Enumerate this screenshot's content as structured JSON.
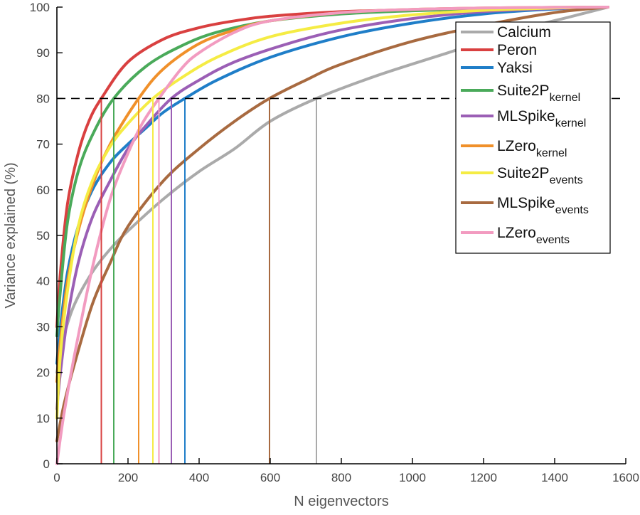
{
  "chart_data": {
    "type": "line",
    "xlabel": "N eigenvectors",
    "ylabel": "Variance explained (%)",
    "xlim": [
      0,
      1600
    ],
    "ylim": [
      0,
      100
    ],
    "xticks": [
      "0",
      "200",
      "400",
      "600",
      "800",
      "1000",
      "1200",
      "1400",
      "1600"
    ],
    "yticks": [
      "0",
      "10",
      "20",
      "30",
      "40",
      "50",
      "60",
      "70",
      "80",
      "90",
      "100"
    ],
    "grid": false,
    "legend_position": "top-right",
    "reference_line": {
      "y": 80,
      "x_from": 0,
      "x_to": 1600,
      "style": "dashed"
    },
    "series": [
      {
        "name": "Calcium",
        "sub": "",
        "color": "#aaaaaa",
        "n80": 730,
        "x": [
          0,
          20,
          50,
          100,
          150,
          200,
          300,
          400,
          500,
          600,
          730,
          900,
          1100,
          1300,
          1450,
          1550
        ],
        "y": [
          20,
          28,
          35,
          42,
          47,
          51,
          58,
          64,
          69,
          75,
          80,
          85,
          90,
          95,
          98,
          100
        ]
      },
      {
        "name": "Peron",
        "sub": "",
        "color": "#d94040",
        "n80": 125,
        "x": [
          0,
          10,
          30,
          60,
          90,
          125,
          200,
          300,
          400,
          500,
          600,
          800,
          1000,
          1200,
          1400,
          1550
        ],
        "y": [
          30,
          42,
          57,
          68,
          75,
          80,
          88,
          93,
          95.5,
          97,
          98,
          99,
          99.4,
          99.7,
          99.9,
          100
        ]
      },
      {
        "name": "Yaksi",
        "sub": "",
        "color": "#1f7ec8",
        "n80": 360,
        "x": [
          0,
          10,
          30,
          60,
          100,
          150,
          200,
          250,
          300,
          360,
          450,
          600,
          800,
          1000,
          1200,
          1400,
          1550
        ],
        "y": [
          22,
          30,
          42,
          52,
          60,
          66,
          70,
          73.5,
          77,
          80,
          84,
          89,
          93.5,
          96.5,
          98.5,
          99.6,
          100
        ]
      },
      {
        "name": "Suite2P",
        "sub": "kernel",
        "color": "#4aaa5a",
        "n80": 160,
        "x": [
          0,
          10,
          30,
          60,
          100,
          160,
          250,
          350,
          450,
          600,
          800,
          1000,
          1200,
          1400,
          1550
        ],
        "y": [
          28,
          38,
          53,
          64,
          72,
          80,
          87,
          91.5,
          94.5,
          97,
          98.5,
          99.2,
          99.6,
          99.9,
          100
        ]
      },
      {
        "name": "MLSpike",
        "sub": "kernel",
        "color": "#9b5fb5",
        "n80": 322,
        "x": [
          0,
          10,
          30,
          60,
          100,
          150,
          200,
          250,
          322,
          400,
          500,
          650,
          800,
          1000,
          1200,
          1400,
          1550
        ],
        "y": [
          12,
          20,
          32,
          44,
          54,
          62,
          69,
          74,
          80,
          84,
          88,
          92,
          95,
          97.5,
          99,
          99.7,
          100
        ]
      },
      {
        "name": "LZero",
        "sub": "kernel",
        "color": "#f0902a",
        "n80": 230,
        "x": [
          0,
          10,
          30,
          60,
          100,
          150,
          230,
          300,
          400,
          500,
          600,
          800,
          1000,
          1200,
          1400,
          1550
        ],
        "y": [
          18,
          27,
          40,
          51,
          61,
          70,
          80,
          86.5,
          92,
          95,
          97,
          98.8,
          99.5,
          99.8,
          99.95,
          100
        ]
      },
      {
        "name": "Suite2P",
        "sub": "events",
        "color": "#f5ec44",
        "n80": 270,
        "x": [
          0,
          10,
          30,
          60,
          100,
          150,
          200,
          270,
          350,
          450,
          600,
          800,
          1000,
          1200,
          1400,
          1550
        ],
        "y": [
          10,
          24,
          38,
          52,
          62,
          69.5,
          74.5,
          80,
          84.5,
          89,
          93.5,
          96.5,
          98.3,
          99.3,
          99.8,
          100
        ]
      },
      {
        "name": "MLSpike",
        "sub": "events",
        "color": "#a86a40",
        "n80": 598,
        "x": [
          0,
          20,
          50,
          100,
          150,
          200,
          300,
          400,
          500,
          598,
          700,
          800,
          1000,
          1200,
          1400,
          1550
        ],
        "y": [
          5,
          13,
          22,
          35,
          44,
          52,
          62,
          69,
          75,
          80,
          84,
          87.5,
          92.5,
          96,
          98.8,
          100
        ]
      },
      {
        "name": "LZero",
        "sub": "events",
        "color": "#f29bc0",
        "n80": 287,
        "x": [
          0,
          20,
          50,
          100,
          150,
          200,
          240,
          287,
          350,
          400,
          500,
          600,
          800,
          1000,
          1200,
          1400,
          1550
        ],
        "y": [
          0,
          11,
          24,
          43,
          58,
          68,
          74.5,
          80,
          86.5,
          90,
          94.5,
          97,
          98.8,
          99.5,
          99.8,
          99.95,
          100
        ]
      }
    ]
  }
}
